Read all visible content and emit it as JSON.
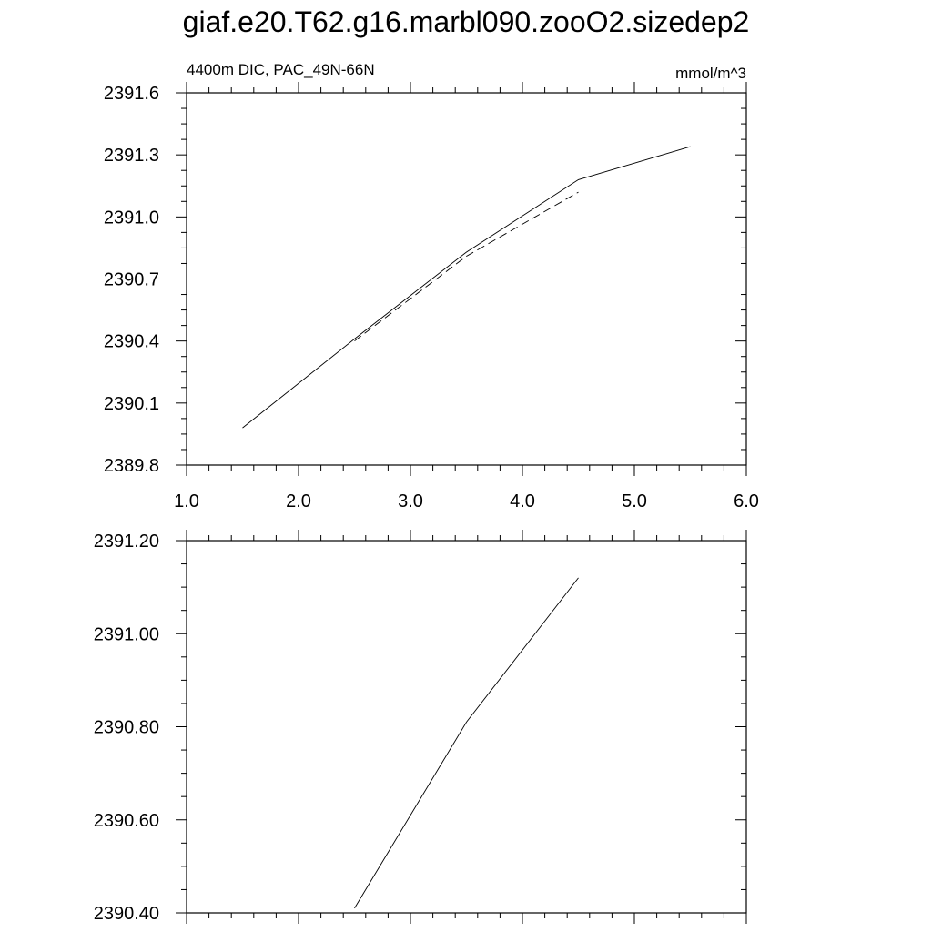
{
  "title": "giaf.e20.T62.g16.marbl090.zooO2.sizedep2",
  "chart_data": [
    {
      "type": "line",
      "left_label": "4400m DIC, PAC_49N-66N",
      "units_label": "mmol/m^3",
      "xlim": [
        1.0,
        6.0
      ],
      "ylim": [
        2389.8,
        2391.6
      ],
      "x_ticks": [
        1.0,
        2.0,
        3.0,
        4.0,
        5.0,
        6.0
      ],
      "x_tick_labels": [
        "1.0",
        "2.0",
        "3.0",
        "4.0",
        "5.0",
        "6.0"
      ],
      "y_ticks": [
        2389.8,
        2390.1,
        2390.4,
        2390.7,
        2391.0,
        2391.3,
        2391.6
      ],
      "y_tick_labels": [
        "2389.8",
        "2390.1",
        "2390.4",
        "2390.7",
        "2391.0",
        "2391.3",
        "2391.6"
      ],
      "grid": false,
      "series": [
        {
          "style": "solid",
          "x": [
            1.5,
            2.5,
            3.5,
            4.5,
            5.5
          ],
          "y": [
            2389.98,
            2390.41,
            2390.83,
            2391.18,
            2391.34
          ]
        },
        {
          "style": "dashed",
          "x": [
            2.5,
            3.5,
            4.5
          ],
          "y": [
            2390.4,
            2390.81,
            2391.12
          ]
        }
      ]
    },
    {
      "type": "line",
      "xlim": [
        1.0,
        6.0
      ],
      "ylim": [
        2390.4,
        2391.2
      ],
      "x_ticks": [
        1.0,
        2.0,
        3.0,
        4.0,
        5.0,
        6.0
      ],
      "y_ticks": [
        2390.4,
        2390.6,
        2390.8,
        2391.0,
        2391.2
      ],
      "y_tick_labels": [
        "2390.40",
        "2390.60",
        "2390.80",
        "2391.00",
        "2391.20"
      ],
      "grid": false,
      "series": [
        {
          "style": "solid",
          "x": [
            2.5,
            3.5,
            4.5
          ],
          "y": [
            2390.41,
            2390.81,
            2391.12
          ]
        }
      ]
    }
  ]
}
